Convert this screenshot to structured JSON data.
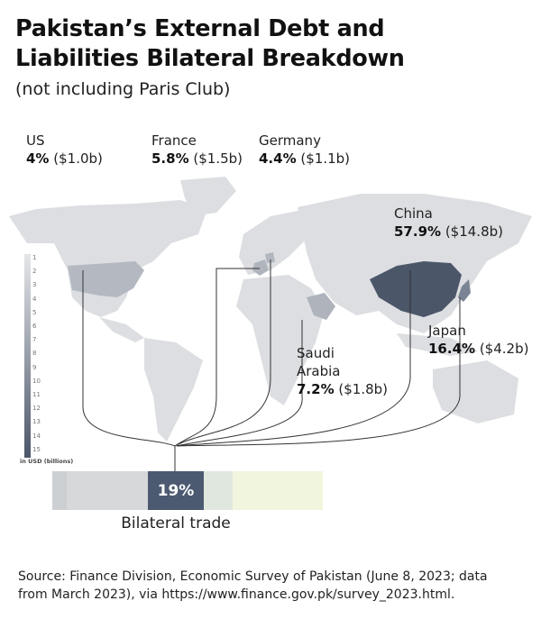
{
  "title_line1": "Pakistan’s External Debt and",
  "title_line2": "Liabilities Bilateral Breakdown",
  "subtitle": "(not including Paris Club)",
  "countries": [
    {
      "name": "US",
      "pct": "4%",
      "amount": "($1.0b)"
    },
    {
      "name": "France",
      "pct": "5.8%",
      "amount": "($1.5b)"
    },
    {
      "name": "Germany",
      "pct": "4.4%",
      "amount": "($1.1b)"
    },
    {
      "name": "China",
      "pct": "57.9%",
      "amount": "($14.8b)"
    },
    {
      "name": "Saudi Arabia",
      "name_line1": "Saudi",
      "name_line2": "Arabia",
      "pct": "7.2%",
      "amount": "($1.8b)"
    },
    {
      "name": "Japan",
      "pct": "16.4%",
      "amount": "($4.2b)"
    }
  ],
  "legend": {
    "ticks": [
      "1",
      "2",
      "3",
      "4",
      "5",
      "6",
      "7",
      "8",
      "9",
      "10",
      "11",
      "12",
      "13",
      "14",
      "15"
    ],
    "unit": "in USD (billions)",
    "colors": {
      "low": "#e4e6e9",
      "high": "#4b5669"
    }
  },
  "bar": {
    "highlight_pct": "19%",
    "label": "Bilateral trade",
    "colors": [
      "#cdd0d3",
      "#d7d8da",
      "#4b5a70",
      "#dfe7df",
      "#f1f5dd"
    ]
  },
  "source_line1": "Source: Finance Division, Economic Survey of Pakistan (June 8, 2023; data",
  "source_line2": "from March 2023), via https://www.finance.gov.pk/survey_2023.html."
}
